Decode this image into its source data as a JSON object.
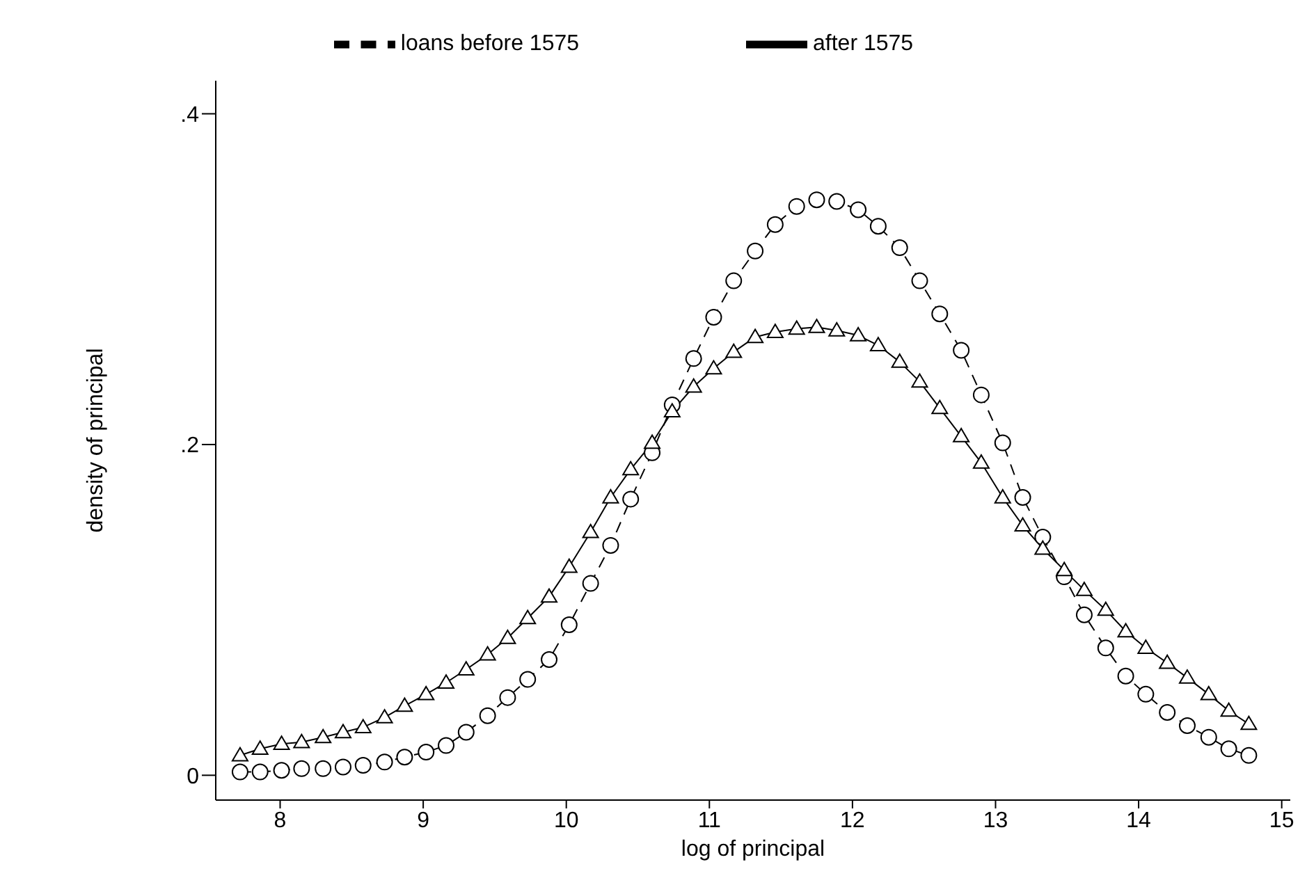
{
  "chart_data": {
    "type": "line",
    "xlabel": "log of principal",
    "ylabel": "density of principal",
    "x": [
      7.72,
      7.86,
      8.01,
      8.15,
      8.3,
      8.44,
      8.58,
      8.73,
      8.87,
      9.02,
      9.16,
      9.3,
      9.45,
      9.59,
      9.73,
      9.88,
      10.02,
      10.17,
      10.31,
      10.45,
      10.6,
      10.74,
      10.89,
      11.03,
      11.17,
      11.32,
      11.46,
      11.61,
      11.75,
      11.89,
      12.04,
      12.18,
      12.33,
      12.47,
      12.61,
      12.76,
      12.9,
      13.05,
      13.19,
      13.33,
      13.48,
      13.62,
      13.77,
      13.91,
      14.05,
      14.2,
      14.34,
      14.49,
      14.63,
      14.77
    ],
    "series": [
      {
        "name": "loans before 1575",
        "color": "#000000",
        "marker": "circle",
        "line_style": "dashed",
        "values": [
          0.002,
          0.002,
          0.003,
          0.004,
          0.004,
          0.005,
          0.006,
          0.008,
          0.011,
          0.014,
          0.018,
          0.026,
          0.036,
          0.047,
          0.058,
          0.07,
          0.091,
          0.116,
          0.139,
          0.167,
          0.195,
          0.224,
          0.252,
          0.277,
          0.299,
          0.317,
          0.333,
          0.344,
          0.348,
          0.347,
          0.342,
          0.332,
          0.319,
          0.299,
          0.279,
          0.257,
          0.23,
          0.201,
          0.168,
          0.144,
          0.12,
          0.097,
          0.077,
          0.06,
          0.049,
          0.038,
          0.03,
          0.023,
          0.016,
          0.012
        ]
      },
      {
        "name": "after 1575",
        "color": "#000000",
        "marker": "triangle",
        "line_style": "solid",
        "values": [
          0.012,
          0.016,
          0.019,
          0.02,
          0.023,
          0.026,
          0.029,
          0.035,
          0.042,
          0.049,
          0.056,
          0.064,
          0.073,
          0.083,
          0.095,
          0.108,
          0.126,
          0.147,
          0.168,
          0.185,
          0.201,
          0.22,
          0.235,
          0.246,
          0.256,
          0.265,
          0.268,
          0.27,
          0.271,
          0.269,
          0.266,
          0.26,
          0.25,
          0.238,
          0.222,
          0.205,
          0.189,
          0.168,
          0.151,
          0.137,
          0.124,
          0.112,
          0.1,
          0.087,
          0.077,
          0.068,
          0.059,
          0.049,
          0.039,
          0.031
        ]
      }
    ],
    "xlim": [
      7.55,
      15.06
    ],
    "xticks": [
      8,
      9,
      10,
      11,
      12,
      13,
      14,
      15
    ],
    "ylim": [
      -0.015,
      0.42
    ],
    "yticks": [
      {
        "value": 0,
        "label": "0"
      },
      {
        "value": 0.2,
        "label": ".2"
      },
      {
        "value": 0.4,
        "label": ".4"
      }
    ],
    "grid": false,
    "legend": "top"
  }
}
